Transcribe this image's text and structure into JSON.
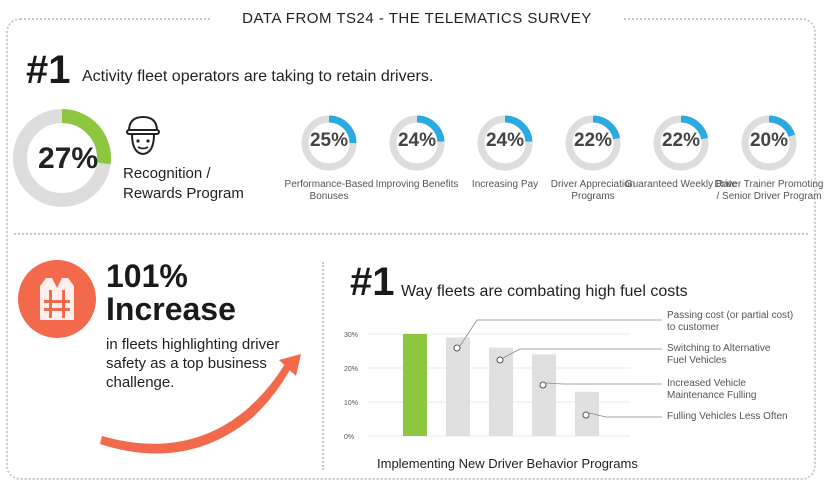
{
  "header": {
    "title": "DATA FROM TS24 - THE TELEMATICS SURVEY"
  },
  "retain": {
    "rank": "#1",
    "headline": "Activity fleet operators are taking to retain drivers.",
    "top": {
      "percent": "27%",
      "value": 27,
      "label_line1": "Recognition /",
      "label_line2": "Rewards Program",
      "icon": "worker-face-icon"
    },
    "items": [
      {
        "percent": "25%",
        "value": 25,
        "label": "Performance-Based Bonuses"
      },
      {
        "percent": "24%",
        "value": 24,
        "label": "Improving Benefits"
      },
      {
        "percent": "24%",
        "value": 24,
        "label": "Increasing Pay"
      },
      {
        "percent": "22%",
        "value": 22,
        "label": "Driver Appreciation Programs"
      },
      {
        "percent": "22%",
        "value": 22,
        "label": "Guaranteed Weekly Rate"
      },
      {
        "percent": "20%",
        "value": 20,
        "label": "Driver Trainer Promoting / Senior Driver Program"
      }
    ],
    "colors": {
      "accent_green": "#8dc63f",
      "accent_blue": "#29abe2",
      "track": "#dddddd"
    }
  },
  "safety": {
    "percent": "101%",
    "word": "Increase",
    "description": "in fleets highlighting driver safety as a top business challenge.",
    "icon": "safety-vest-icon",
    "color": "#f26a4b"
  },
  "fuel": {
    "rank": "#1",
    "headline": "Way fleets are combating high fuel costs"
  },
  "chart_data": {
    "type": "bar",
    "title": "Implementing New Driver Behavior Programs",
    "categories": [
      "Implementing New Driver Behavior Programs",
      "Passing cost (or partial cost) to customer",
      "Switching to Alternative Fuel Vehicles",
      "Increased Vehicle Maintenance Fulling",
      "Fulling Vehicles Less Often"
    ],
    "values": [
      30,
      29,
      26,
      24,
      13
    ],
    "ylim": [
      0,
      30
    ],
    "yticks": [
      "0%",
      "10%",
      "20%",
      "30%"
    ],
    "grid": true,
    "highlight_color": "#8dc63f",
    "bar_color": "#e0e0e0",
    "callouts": [
      {
        "line1": "Passing cost (or partial cost)",
        "line2": "to customer"
      },
      {
        "line1": "Switching to Alternative",
        "line2": "Fuel Vehicles"
      },
      {
        "line1": "Increased Vehicle",
        "line2": "Maintenance Fulling"
      },
      {
        "line1": "Fulling Vehicles Less Often",
        "line2": ""
      }
    ]
  }
}
